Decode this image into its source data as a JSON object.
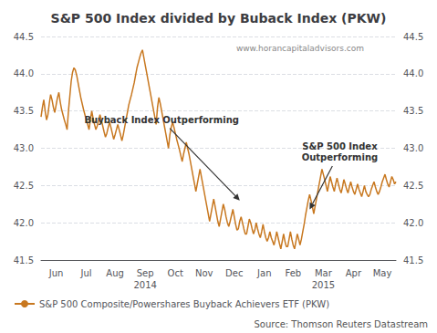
{
  "chart_data": {
    "type": "line",
    "title": "S&P 500 Index divided by Buback Index (PKW)",
    "categories": [
      null,
      null,
      null,
      null,
      null,
      null,
      null,
      null,
      null,
      null,
      null,
      "Jun",
      null,
      null,
      null,
      null,
      null,
      null,
      null,
      null,
      null,
      null,
      null,
      null,
      null,
      null,
      null,
      null,
      null,
      null,
      null,
      null,
      null,
      "Jul",
      null,
      null,
      null,
      null,
      null,
      null,
      null,
      null,
      null,
      null,
      null,
      null,
      null,
      null,
      null,
      null,
      null,
      null,
      null,
      null,
      "Aug",
      null,
      null,
      null,
      null,
      null,
      null,
      null,
      null,
      null,
      null,
      null,
      null,
      null,
      null,
      null,
      null,
      null,
      null,
      null,
      null,
      null,
      "Sep\n2014",
      null,
      null,
      null,
      null,
      null,
      null,
      null,
      null,
      null,
      null,
      null,
      null,
      null,
      null,
      null,
      null,
      null,
      null,
      null,
      null,
      null,
      "Oct",
      null,
      null,
      null,
      null,
      null,
      null,
      null,
      null,
      null,
      null,
      null,
      null,
      null,
      null,
      null,
      null,
      null,
      null,
      null,
      null,
      "Nov",
      null,
      null,
      null,
      null,
      null,
      null,
      null,
      null,
      null,
      null,
      null,
      null,
      null,
      null,
      null,
      null,
      null,
      null,
      null,
      null,
      null,
      "Dec",
      null,
      null,
      null,
      null,
      null,
      null,
      null,
      null,
      null,
      null,
      null,
      null,
      null,
      null,
      null,
      null,
      null,
      null,
      null,
      null,
      null,
      "Jan",
      null,
      null,
      null,
      null,
      null,
      null,
      null,
      null,
      null,
      null,
      null,
      null,
      null,
      null,
      null,
      null,
      null,
      null,
      null,
      null,
      "Feb",
      null,
      null,
      null,
      null,
      null,
      null,
      null,
      null,
      null,
      null,
      null,
      null,
      null,
      null,
      null,
      null,
      null,
      null,
      null,
      null,
      null,
      "Mar\n2015",
      null,
      null,
      null,
      null,
      null,
      null,
      null,
      null,
      null,
      null,
      null,
      null,
      null,
      null,
      null,
      null,
      null,
      null,
      null,
      null,
      null,
      "Apr",
      null,
      null,
      null,
      null,
      null,
      null,
      null,
      null,
      null,
      null,
      null,
      null,
      null,
      null,
      null,
      null,
      null,
      null,
      null,
      null,
      "May",
      null,
      null,
      null,
      null,
      null,
      null,
      null,
      null,
      null,
      null
    ],
    "series": [
      {
        "name": "S&P 500 Composite/Powershares Buyback Achievers ETF (PKW)",
        "color": "#c87820",
        "values": [
          43.42,
          43.55,
          43.65,
          43.5,
          43.38,
          43.45,
          43.6,
          43.72,
          43.65,
          43.55,
          43.48,
          43.58,
          43.68,
          43.75,
          43.62,
          43.52,
          43.45,
          43.38,
          43.32,
          43.25,
          43.5,
          43.7,
          43.9,
          44.02,
          44.08,
          44.05,
          43.98,
          43.88,
          43.78,
          43.68,
          43.6,
          43.52,
          43.45,
          43.38,
          43.32,
          43.25,
          43.38,
          43.5,
          43.4,
          43.32,
          43.25,
          43.3,
          43.38,
          43.45,
          43.38,
          43.3,
          43.22,
          43.15,
          43.2,
          43.28,
          43.35,
          43.28,
          43.2,
          43.12,
          43.18,
          43.25,
          43.32,
          43.25,
          43.18,
          43.1,
          43.18,
          43.28,
          43.38,
          43.48,
          43.58,
          43.65,
          43.72,
          43.8,
          43.88,
          43.98,
          44.08,
          44.15,
          44.22,
          44.28,
          44.32,
          44.22,
          44.12,
          44.02,
          43.92,
          43.82,
          43.72,
          43.62,
          43.52,
          43.42,
          43.32,
          43.55,
          43.68,
          43.6,
          43.5,
          43.4,
          43.3,
          43.2,
          43.1,
          43.0,
          43.18,
          43.28,
          43.35,
          43.28,
          43.2,
          43.12,
          43.05,
          42.98,
          42.9,
          42.82,
          42.92,
          43.0,
          43.08,
          43.0,
          42.92,
          42.82,
          42.72,
          42.62,
          42.52,
          42.42,
          42.52,
          42.62,
          42.72,
          42.62,
          42.52,
          42.42,
          42.32,
          42.22,
          42.12,
          42.02,
          42.12,
          42.22,
          42.32,
          42.22,
          42.12,
          42.02,
          41.95,
          42.05,
          42.15,
          42.25,
          42.18,
          42.08,
          42.0,
          41.95,
          42.02,
          42.1,
          42.18,
          42.08,
          41.98,
          41.9,
          41.92,
          42.02,
          42.08,
          42.0,
          41.92,
          41.85,
          41.85,
          41.95,
          42.05,
          42.0,
          41.92,
          41.85,
          41.9,
          42.0,
          41.92,
          41.85,
          41.8,
          41.88,
          41.98,
          41.88,
          41.8,
          41.75,
          41.8,
          41.88,
          41.8,
          41.75,
          41.7,
          41.78,
          41.88,
          41.8,
          41.72,
          41.65,
          41.75,
          41.85,
          41.75,
          41.68,
          41.68,
          41.78,
          41.88,
          41.78,
          41.7,
          41.65,
          41.75,
          41.85,
          41.78,
          41.7,
          41.78,
          41.88,
          41.98,
          42.1,
          42.2,
          42.3,
          42.38,
          42.3,
          42.22,
          42.12,
          42.22,
          42.32,
          42.42,
          42.52,
          42.62,
          42.72,
          42.65,
          42.58,
          42.5,
          42.42,
          42.52,
          42.62,
          42.55,
          42.48,
          42.42,
          42.52,
          42.6,
          42.52,
          42.45,
          42.4,
          42.48,
          42.58,
          42.52,
          42.45,
          42.4,
          42.48,
          42.55,
          42.48,
          42.42,
          42.38,
          42.45,
          42.52,
          42.45,
          42.4,
          42.35,
          42.42,
          42.5,
          42.42,
          42.38,
          42.35,
          42.38,
          42.45,
          42.5,
          42.55,
          42.48,
          42.42,
          42.38,
          42.42,
          42.48,
          42.55,
          42.6,
          42.65,
          42.58,
          42.52,
          42.48,
          42.55,
          42.62,
          42.58,
          42.52,
          42.55
        ]
      }
    ],
    "ylim": [
      41.5,
      44.5
    ],
    "yticks": [
      41.5,
      {
        "value": 42,
        "label": "42.0"
      },
      42.5,
      {
        "value": 43,
        "label": "43.0"
      },
      43.5,
      {
        "value": 44,
        "label": "44.0"
      },
      44.5
    ],
    "grid": true,
    "legend": "lower left",
    "annotations": [
      {
        "text": "Buyback Index Outperforming",
        "x": 88,
        "y": 43.38,
        "arrow_x": 145,
        "arrow_y": 42.3
      },
      {
        "text": "S&P 500 Index\nOutperforming",
        "x": 218,
        "y": 42.95,
        "arrow_x": 196,
        "arrow_y": 42.18
      }
    ],
    "watermark": "www.horancapitaladvisors.com",
    "source": "Source: Thomson Reuters Datastream"
  }
}
